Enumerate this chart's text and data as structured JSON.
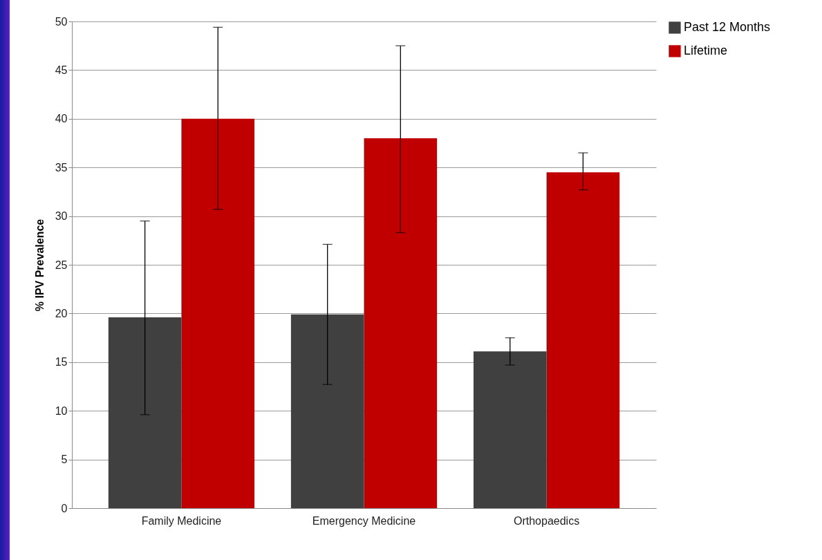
{
  "chart_data": {
    "type": "bar",
    "ylabel": "% IPV Prevalence",
    "categories": [
      "Family Medicine",
      "Emergency Medicine",
      "Orthopaedics"
    ],
    "series": [
      {
        "name": "Past 12 Months",
        "color": "#404040",
        "values": [
          19.6,
          19.9,
          16.1
        ],
        "errors": [
          [
            9.6,
            29.5
          ],
          [
            12.7,
            27.1
          ],
          [
            14.7,
            17.5
          ]
        ]
      },
      {
        "name": "Lifetime",
        "color": "#c00000",
        "values": [
          40,
          38,
          34.5
        ],
        "errors": [
          [
            30.7,
            49.4
          ],
          [
            28.3,
            47.5
          ],
          [
            32.7,
            36.5
          ]
        ]
      }
    ],
    "ylim": [
      0,
      50
    ],
    "yticks": [
      0,
      5,
      10,
      15,
      20,
      25,
      30,
      35,
      40,
      45,
      50
    ],
    "grid": "y",
    "legend": "right"
  }
}
